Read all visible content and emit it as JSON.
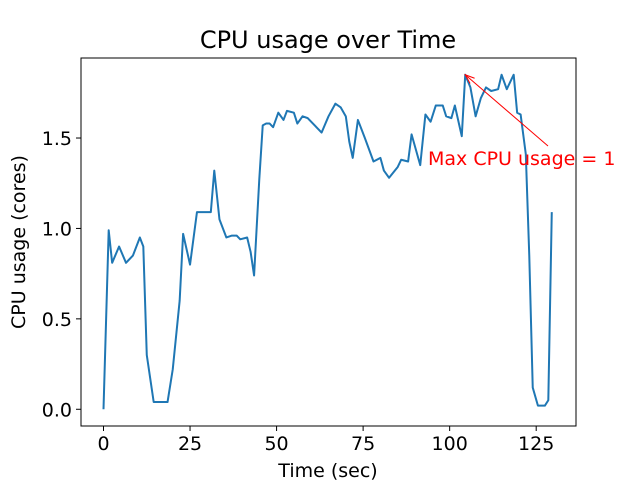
{
  "chart_data": {
    "type": "line",
    "title": "CPU usage over Time",
    "x_label": "Time (sec)",
    "y_label": "CPU usage (cores)",
    "x": [
      0,
      1.5,
      2.5,
      4.5,
      6.5,
      8.5,
      10.5,
      11.5,
      12.5,
      14.5,
      16.5,
      18.5,
      20,
      22,
      23,
      25,
      27,
      29,
      31,
      32,
      33.5,
      35.5,
      37,
      38.5,
      39.5,
      41.5,
      42.5,
      43.5,
      45,
      46,
      47,
      48,
      49,
      50.5,
      52,
      53,
      55,
      56,
      57.5,
      59,
      61,
      63,
      65,
      67,
      68.5,
      70,
      71,
      72,
      73.5,
      75.5,
      78,
      80,
      81,
      82.5,
      85,
      86,
      88,
      89,
      91.5,
      93,
      94.5,
      96,
      98,
      99,
      100.5,
      101.5,
      103.5,
      104.5,
      106,
      107.5,
      109,
      110.5,
      112,
      114,
      115,
      116.5,
      118.5,
      119.5,
      120.5,
      122,
      123,
      124,
      125.5,
      127.5,
      128.5,
      129.5
    ],
    "values": [
      0.0,
      0.99,
      0.81,
      0.9,
      0.81,
      0.85,
      0.95,
      0.9,
      0.3,
      0.04,
      0.04,
      0.04,
      0.22,
      0.6,
      0.97,
      0.8,
      1.09,
      1.09,
      1.09,
      1.32,
      1.05,
      0.95,
      0.96,
      0.96,
      0.94,
      0.95,
      0.87,
      0.74,
      1.27,
      1.57,
      1.58,
      1.58,
      1.56,
      1.64,
      1.6,
      1.65,
      1.64,
      1.58,
      1.62,
      1.61,
      1.57,
      1.53,
      1.62,
      1.69,
      1.67,
      1.62,
      1.48,
      1.39,
      1.6,
      1.5,
      1.37,
      1.39,
      1.32,
      1.28,
      1.34,
      1.38,
      1.37,
      1.52,
      1.35,
      1.63,
      1.59,
      1.68,
      1.68,
      1.62,
      1.61,
      1.68,
      1.51,
      1.85,
      1.78,
      1.62,
      1.72,
      1.78,
      1.76,
      1.77,
      1.85,
      1.77,
      1.85,
      1.64,
      1.63,
      1.41,
      0.85,
      0.12,
      0.02,
      0.02,
      0.05,
      1.09
    ],
    "color": "#1f77b4",
    "annotation": {
      "text": "Max CPU usage = 1",
      "color": "#ff0000"
    },
    "xlim": [
      -6.5,
      136.5
    ],
    "xticks": [
      0,
      25,
      50,
      75,
      100,
      125
    ],
    "ylim": [
      -0.0925,
      1.9425
    ],
    "yticks": [
      {
        "value": 0,
        "label": "0.0"
      },
      {
        "value": 0.5,
        "label": "0.5"
      },
      {
        "value": 1,
        "label": "1.0"
      },
      {
        "value": 1.5,
        "label": "1.5"
      }
    ]
  }
}
